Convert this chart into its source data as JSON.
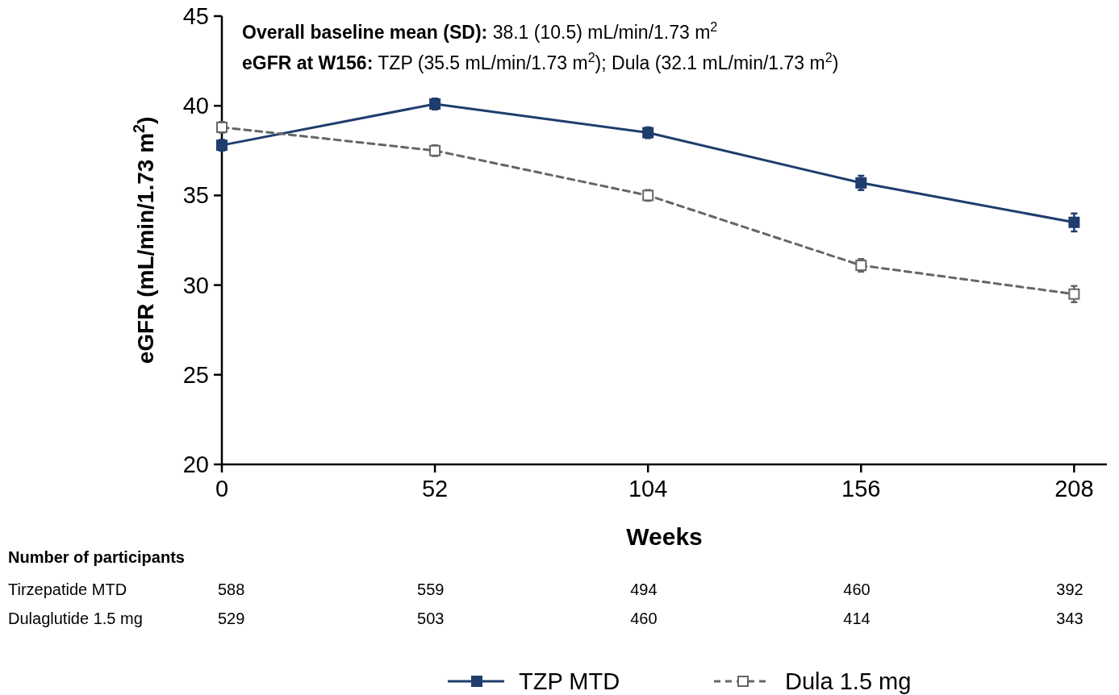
{
  "chart_data": {
    "type": "line",
    "xlabel": "Weeks",
    "ylabel": "eGFR (mL/min/1.73 m$^{2}$)",
    "x": [
      0,
      52,
      104,
      156,
      208
    ],
    "xlim": [
      0,
      216
    ],
    "xticks": [
      0,
      52,
      104,
      156,
      208
    ],
    "ylim": [
      20,
      45
    ],
    "yticks": [
      20,
      25,
      30,
      35,
      40,
      45
    ],
    "series": [
      {
        "name": "TZP MTD",
        "color": "#1f3d6e",
        "values": [
          37.8,
          40.1,
          38.5,
          35.7,
          33.5
        ],
        "errors": [
          0.3,
          0.3,
          0.3,
          0.4,
          0.5
        ],
        "line_style": "solid"
      },
      {
        "name": "Dula 1.5 mg",
        "color": "#666666",
        "values": [
          38.8,
          37.5,
          35.0,
          31.1,
          29.5
        ],
        "errors": [
          0.3,
          0.3,
          0.3,
          0.35,
          0.45
        ],
        "line_style": "dashed"
      }
    ],
    "marker": "square",
    "legend": "bottom",
    "grid": false,
    "annotations": [
      "Overall baseline mean (SD):",
      "38.1 (10.5) mL/min/1.73 m$^{2}$",
      "eGFR at W156:",
      "TZP (35.5 mL/min/1.73 m$^{2}$); Dula (32.1 mL/min/1.73 m$^{2}$)",
      "Number of participants",
      "Tirzepatide MTD",
      "588",
      "559",
      "494",
      "460",
      "392",
      "Dulaglutide 1.5 mg",
      "529",
      "503",
      "460",
      "414",
      "343"
    ]
  }
}
